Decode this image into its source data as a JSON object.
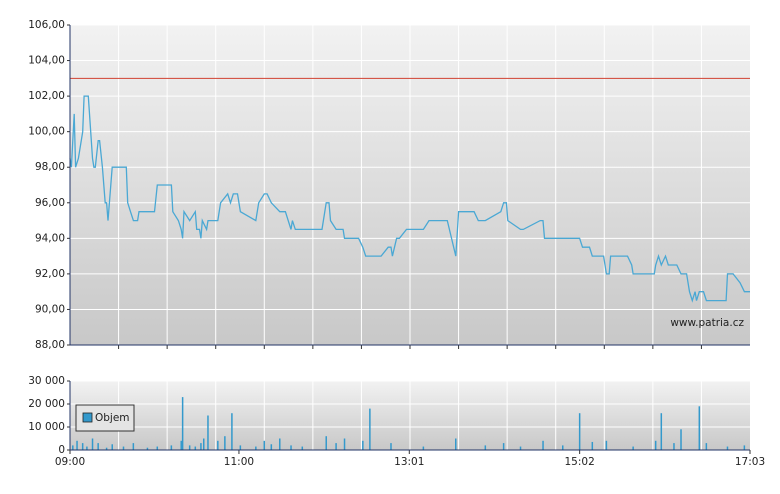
{
  "chart_data": [
    {
      "type": "line",
      "color": "#4aa8d4",
      "reference_line": 103,
      "reference_color": "#d04030",
      "annotation": "www.patria.cz",
      "xlim": [
        "09:00",
        "17:03"
      ],
      "ylim": [
        88,
        106
      ],
      "yticks": [
        {
          "value": 88,
          "label": "88,00"
        },
        {
          "value": 90,
          "label": "90,00"
        },
        {
          "value": 92,
          "label": "92,00"
        },
        {
          "value": 94,
          "label": "94,00"
        },
        {
          "value": 96,
          "label": "96,00"
        },
        {
          "value": 98,
          "label": "98,00"
        },
        {
          "value": 100,
          "label": "100,00"
        },
        {
          "value": 102,
          "label": "102,00"
        },
        {
          "value": 104,
          "label": "104,00"
        },
        {
          "value": 106,
          "label": "106,00"
        }
      ],
      "grid": true,
      "x": [
        "09:00",
        "09:01",
        "09:03",
        "09:04",
        "09:06",
        "09:09",
        "09:10",
        "09:13",
        "09:16",
        "09:17",
        "09:18",
        "09:20",
        "09:21",
        "09:23",
        "09:25",
        "09:26",
        "09:27",
        "09:28",
        "09:30",
        "09:40",
        "09:41",
        "09:43",
        "09:45",
        "09:48",
        "09:49",
        "10:00",
        "10:02",
        "10:12",
        "10:13",
        "10:17",
        "10:19",
        "10:20",
        "10:21",
        "10:25",
        "10:29",
        "10:30",
        "10:32",
        "10:33",
        "10:34",
        "10:37",
        "10:38",
        "10:45",
        "10:47",
        "10:52",
        "10:54",
        "10:56",
        "10:59",
        "11:01",
        "11:12",
        "11:14",
        "11:18",
        "11:20",
        "11:23",
        "11:29",
        "11:33",
        "11:37",
        "11:38",
        "11:40",
        "11:59",
        "12:02",
        "12:04",
        "12:05",
        "12:09",
        "12:14",
        "12:15",
        "12:25",
        "12:28",
        "12:30",
        "12:41",
        "12:46",
        "12:48",
        "12:49",
        "12:52",
        "12:54",
        "12:59",
        "13:11",
        "13:15",
        "13:28",
        "13:34",
        "13:36",
        "13:47",
        "13:50",
        "13:55",
        "14:06",
        "14:08",
        "14:10",
        "14:11",
        "14:20",
        "14:22",
        "14:34",
        "14:36",
        "14:37",
        "15:02",
        "15:04",
        "15:09",
        "15:11",
        "15:19",
        "15:21",
        "15:23",
        "15:24",
        "15:36",
        "15:39",
        "15:40",
        "15:55",
        "15:56",
        "15:58",
        "16:00",
        "16:03",
        "16:05",
        "16:11",
        "16:14",
        "16:18",
        "16:20",
        "16:22",
        "16:24",
        "16:25",
        "16:27",
        "16:30",
        "16:32",
        "16:46",
        "16:47",
        "16:51",
        "16:56",
        "16:59",
        "17:03"
      ],
      "values": [
        98.5,
        98,
        101,
        98,
        98.5,
        100,
        102,
        102,
        98.5,
        98,
        98,
        99.5,
        99.5,
        98,
        96,
        96,
        95,
        96,
        98,
        98,
        96,
        95.5,
        95,
        95,
        95.5,
        95.5,
        97,
        97,
        95.5,
        95,
        94.5,
        94,
        95.5,
        95,
        95.5,
        94.5,
        94.5,
        94,
        95,
        94.5,
        95,
        95,
        96,
        96.5,
        96,
        96.5,
        96.5,
        95.5,
        95,
        96,
        96.5,
        96.5,
        96,
        95.5,
        95.5,
        94.5,
        95,
        94.5,
        94.5,
        96,
        96,
        95,
        94.5,
        94.5,
        94,
        94,
        93.5,
        93,
        93,
        93.5,
        93.5,
        93,
        94,
        94,
        94.5,
        94.5,
        95,
        95,
        93,
        95.5,
        95.5,
        95,
        95,
        95.5,
        96,
        96,
        95,
        94.5,
        94.5,
        95,
        95,
        94,
        94,
        93.5,
        93.5,
        93,
        93,
        92,
        92,
        93,
        93,
        92.5,
        92,
        92,
        92.5,
        93,
        92.5,
        93,
        92.5,
        92.5,
        92,
        92,
        91,
        90.5,
        91,
        90.5,
        91,
        91,
        90.5,
        90.5,
        92,
        92,
        91.5,
        91,
        91
      ]
    },
    {
      "type": "bar",
      "xlim": [
        "09:00",
        "17:03"
      ],
      "xticks": [
        "09:00",
        "11:00",
        "13:01",
        "15:02",
        "17:03"
      ],
      "ylim": [
        0,
        30000
      ],
      "yticks": [
        0,
        {
          "value": 10000,
          "label": "10 000"
        },
        {
          "value": 20000,
          "label": "20 000"
        },
        {
          "value": 30000,
          "label": "30 000"
        }
      ],
      "grid": true,
      "legend": "upper left",
      "x": [
        "09:02",
        "09:05",
        "09:09",
        "09:12",
        "09:16",
        "09:20",
        "09:26",
        "09:30",
        "09:38",
        "09:45",
        "09:55",
        "10:02",
        "10:12",
        "10:19",
        "10:20",
        "10:25",
        "10:29",
        "10:33",
        "10:35",
        "10:38",
        "10:45",
        "10:50",
        "10:55",
        "11:01",
        "11:12",
        "11:18",
        "11:23",
        "11:29",
        "11:37",
        "11:45",
        "12:02",
        "12:09",
        "12:15",
        "12:28",
        "12:33",
        "12:48",
        "13:11",
        "13:34",
        "13:55",
        "14:08",
        "14:20",
        "14:36",
        "14:50",
        "15:02",
        "15:11",
        "15:21",
        "15:40",
        "15:56",
        "16:00",
        "16:09",
        "16:14",
        "16:27",
        "16:32",
        "16:47",
        "16:59"
      ],
      "series": [
        {
          "name": "Objem",
          "color": "#3399cc",
          "values": [
            2000,
            4000,
            3000,
            1500,
            5000,
            3000,
            1000,
            2500,
            1500,
            3000,
            1000,
            1500,
            2000,
            4000,
            23000,
            2000,
            1500,
            3000,
            5000,
            15000,
            4000,
            6000,
            16000,
            2000,
            1500,
            4000,
            2500,
            5000,
            2000,
            1500,
            6000,
            3000,
            5000,
            4000,
            18000,
            3000,
            1500,
            5000,
            2000,
            3000,
            1500,
            4000,
            2000,
            16000,
            3500,
            4000,
            1500,
            4000,
            16000,
            3000,
            9000,
            19000,
            3000,
            1500,
            2000
          ]
        }
      ]
    }
  ]
}
